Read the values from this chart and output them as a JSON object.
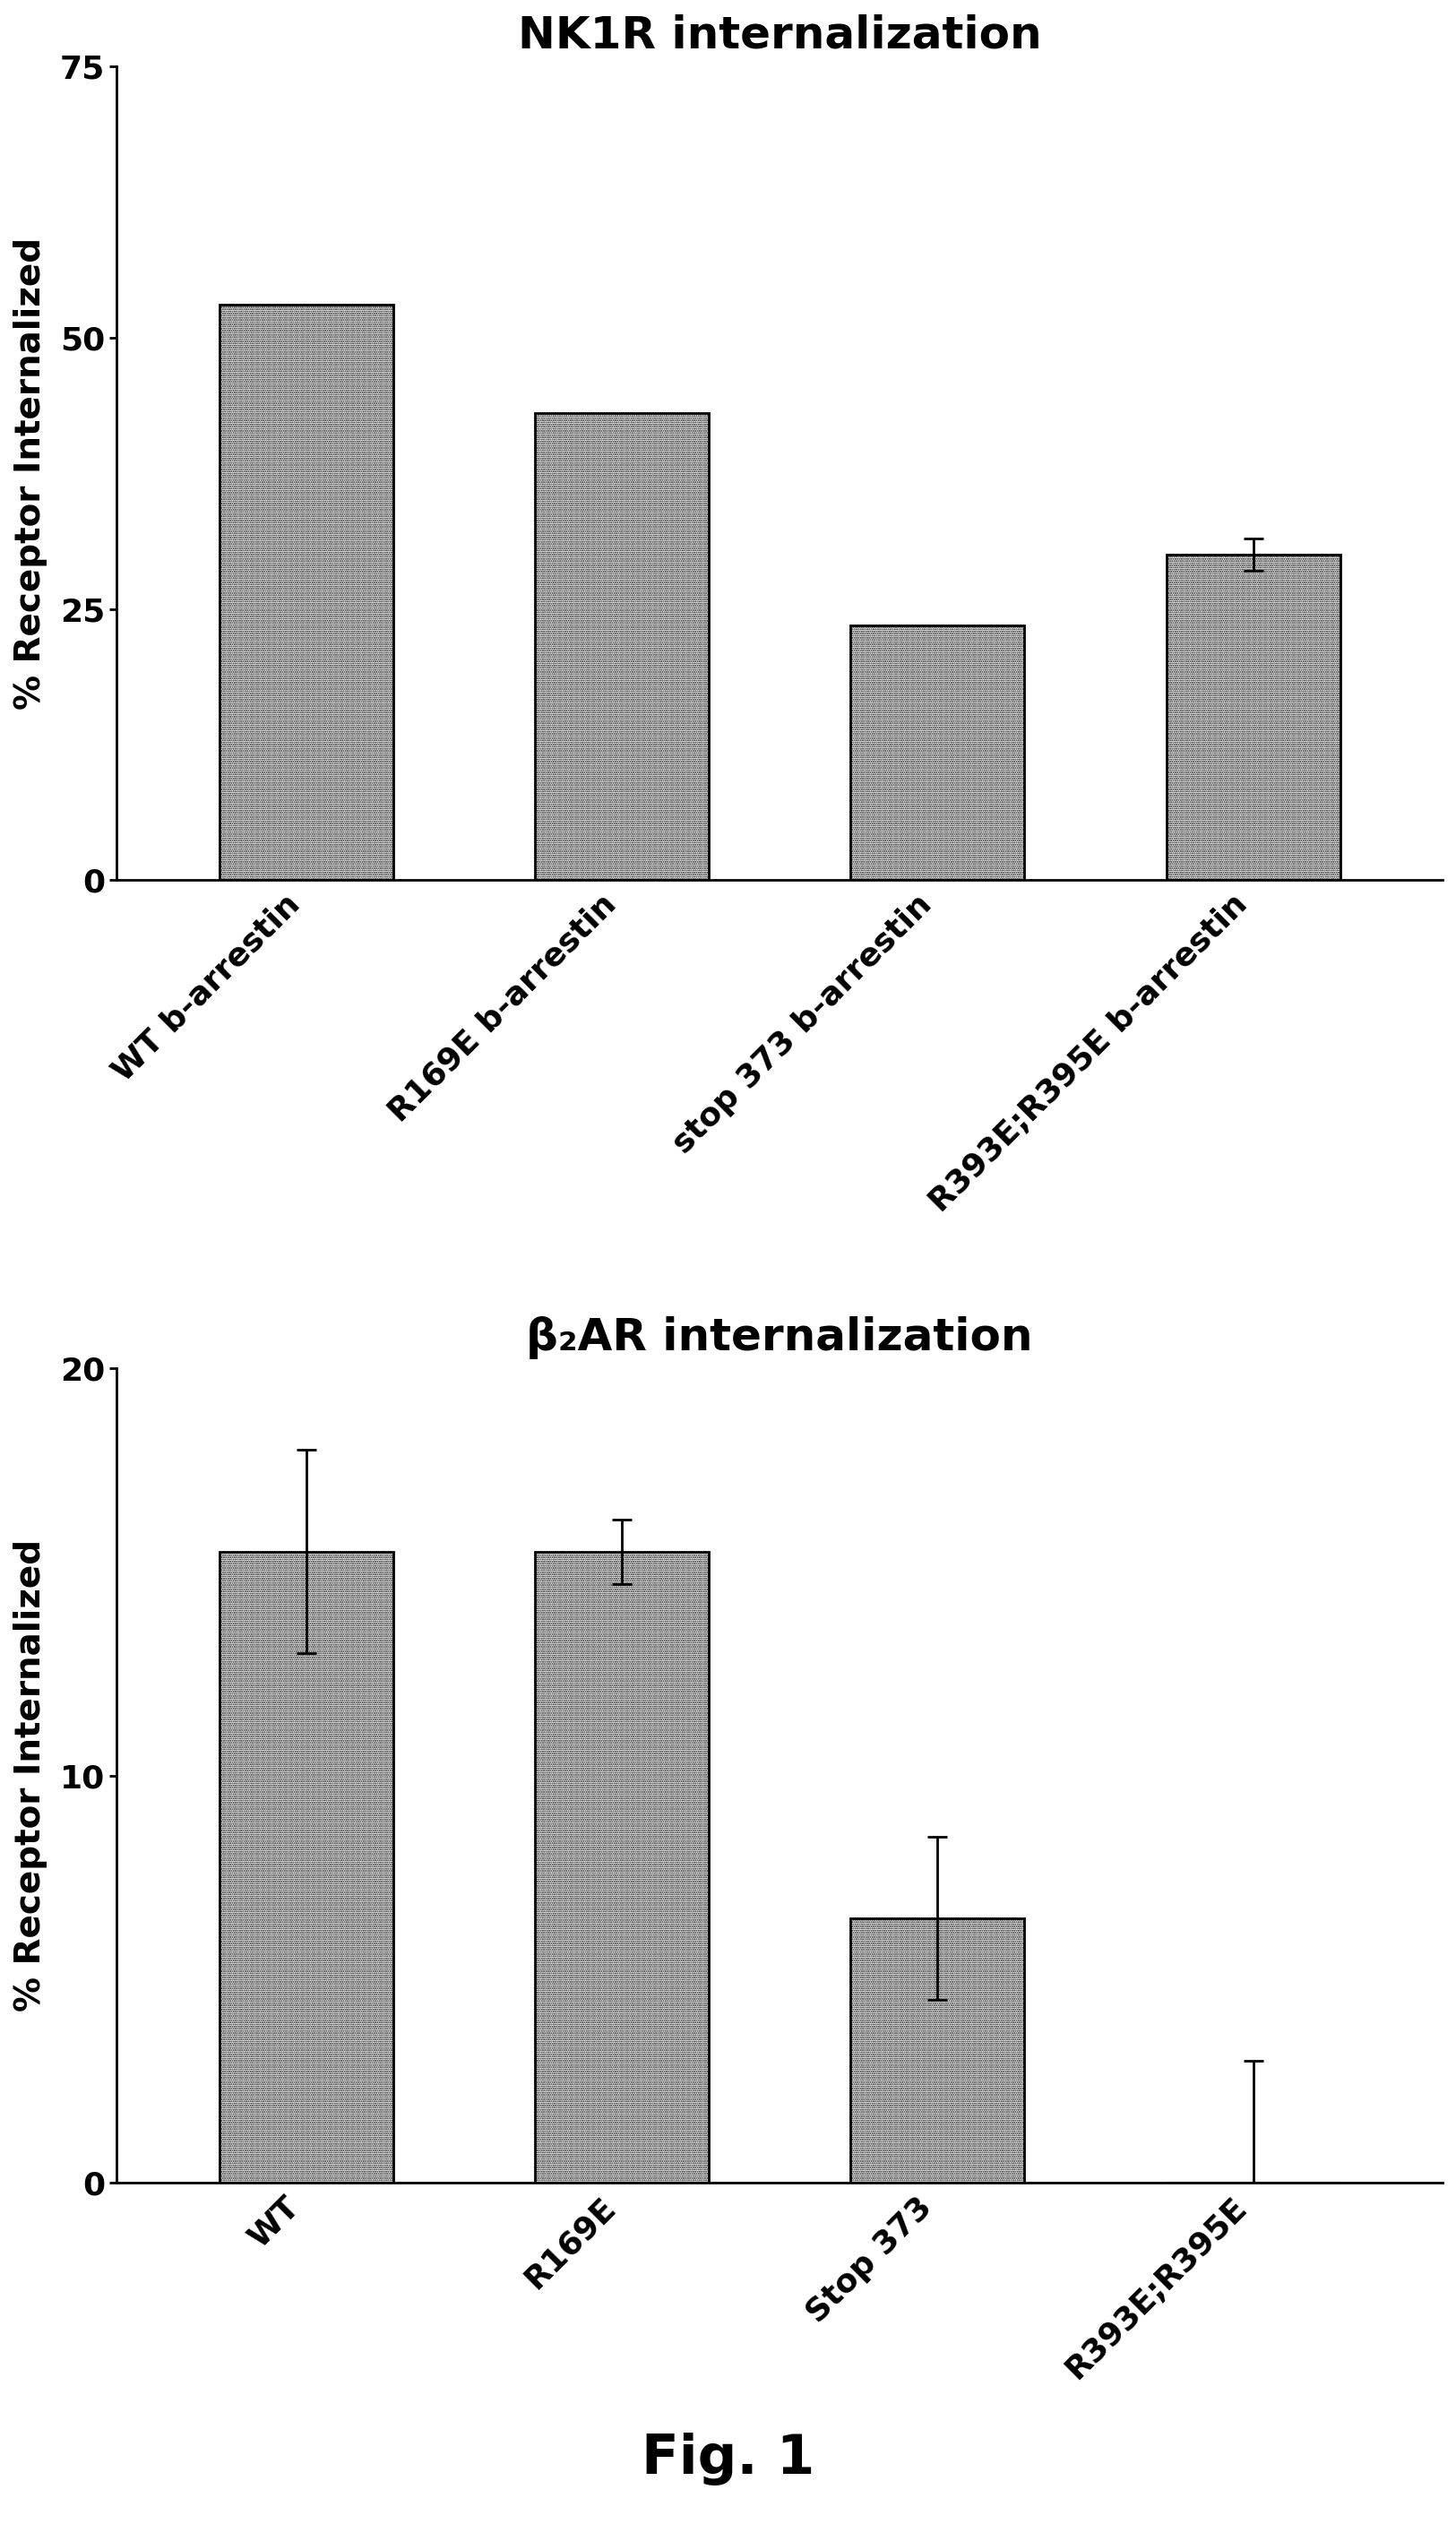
{
  "chart1": {
    "title": "NK1R internalization",
    "categories": [
      "WT b-arrestin",
      "R169E b-arrestin",
      "stop 373 b-arrestin",
      "R393E;R395E b-arrestin"
    ],
    "values": [
      53.0,
      43.0,
      23.5,
      30.0
    ],
    "errors": [
      null,
      null,
      null,
      1.5
    ],
    "ylim": [
      0,
      75
    ],
    "yticks": [
      0,
      25,
      50,
      75
    ],
    "ylabel": "% Receptor Internalized"
  },
  "chart2": {
    "title": "β₂AR internalization",
    "categories": [
      "WT",
      "R169E",
      "Stop 373",
      "R393E;R395E"
    ],
    "values": [
      15.5,
      15.5,
      6.5,
      0.0
    ],
    "errors": [
      2.5,
      0.8,
      2.0,
      3.0
    ],
    "ylim": [
      0,
      20
    ],
    "yticks": [
      0,
      10,
      20
    ],
    "ylabel": "% Receptor Internalized"
  },
  "fig_label": "Fig. 1",
  "bar_edgecolor": "#000000",
  "background_color": "#ffffff",
  "title_fontsize": 36,
  "ylabel_fontsize": 28,
  "tick_fontsize": 26,
  "xlabel_fontsize": 26,
  "fig_label_fontsize": 44
}
